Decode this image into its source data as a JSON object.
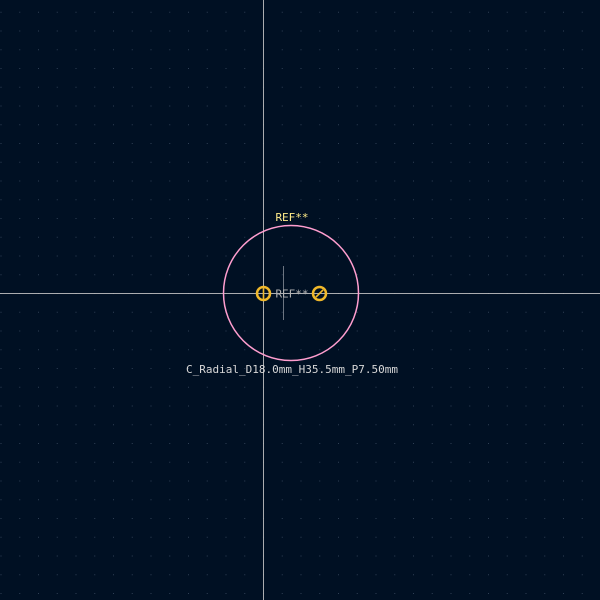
{
  "footprint": {
    "reference_silk": "REF**",
    "reference_fab": "REF**",
    "value": "C_Radial_D18.0mm_H35.5mm_P7.50mm"
  },
  "colors": {
    "background": "#001023",
    "grid_dot": "#2f3f55",
    "crosshair": "#c8c8c8",
    "courtyard": "#ff9ecf",
    "pad": "#f0b82a",
    "silk_text": "#ffec8a",
    "fab_text": "#b4b4b4",
    "value_text": "#d8d8d8"
  }
}
